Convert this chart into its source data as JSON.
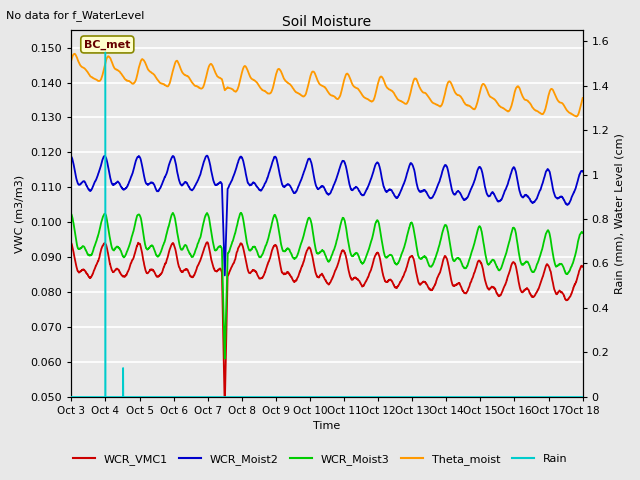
{
  "title": "Soil Moisture",
  "suptitle": "No data for f_WaterLevel",
  "ylabel_left": "VWC (m3/m3)",
  "ylabel_right": "Rain (mm), Water Level (cm)",
  "xlabel": "Time",
  "ylim_left": [
    0.05,
    0.155
  ],
  "ylim_right": [
    0.0,
    1.65
  ],
  "yticks_left": [
    0.05,
    0.06,
    0.07,
    0.08,
    0.09,
    0.1,
    0.11,
    0.12,
    0.13,
    0.14,
    0.15
  ],
  "yticks_right": [
    0.0,
    0.2,
    0.4,
    0.6,
    0.8,
    1.0,
    1.2,
    1.4,
    1.6
  ],
  "xtick_labels": [
    "Oct 3",
    "Oct 4",
    "Oct 5",
    "Oct 6",
    "Oct 7",
    "Oct 8",
    "Oct 9",
    "Oct 10",
    "Oct 11",
    "Oct 12",
    "Oct 13",
    "Oct 14",
    "Oct 15",
    "Oct 16",
    "Oct 17",
    "Oct 18"
  ],
  "bg_color": "#e8e8e8",
  "grid_color": "white",
  "colors": {
    "vmc1": "#cc0000",
    "moist2": "#0000cc",
    "moist3": "#00cc00",
    "theta": "#ff9900",
    "rain": "#00cccc"
  },
  "legend_entries": [
    "WCR_VMC1",
    "WCR_Moist2",
    "WCR_Moist3",
    "Theta_moist",
    "Rain"
  ],
  "legend_colors": [
    "#cc0000",
    "#0000cc",
    "#00cc00",
    "#ff9900",
    "#00cccc"
  ]
}
